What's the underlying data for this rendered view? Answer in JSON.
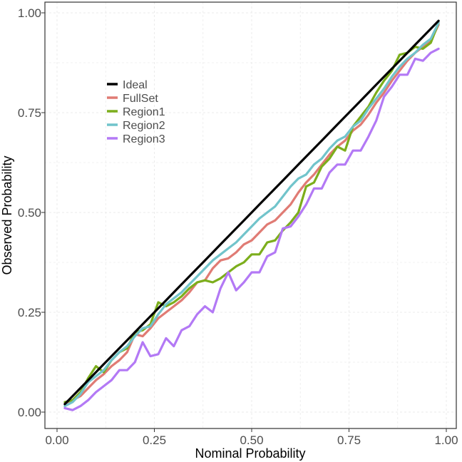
{
  "chart_data": {
    "type": "line",
    "title": "",
    "xlabel": "Nominal Probability",
    "ylabel": "Observed Probability",
    "xlim": [
      0,
      1
    ],
    "ylim": [
      0,
      1
    ],
    "x_ticks": [
      "0.00",
      "0.25",
      "0.50",
      "0.75",
      "1.00"
    ],
    "y_ticks": [
      "0.00",
      "0.25",
      "0.50",
      "0.75",
      "1.00"
    ],
    "grid": true,
    "legend_position": "top-left, inside plot",
    "x": [
      0.02,
      0.04,
      0.06,
      0.08,
      0.1,
      0.12,
      0.14,
      0.16,
      0.18,
      0.2,
      0.22,
      0.24,
      0.26,
      0.28,
      0.3,
      0.32,
      0.34,
      0.36,
      0.38,
      0.4,
      0.42,
      0.44,
      0.46,
      0.48,
      0.5,
      0.52,
      0.54,
      0.56,
      0.58,
      0.6,
      0.62,
      0.64,
      0.66,
      0.68,
      0.7,
      0.72,
      0.74,
      0.76,
      0.78,
      0.8,
      0.82,
      0.84,
      0.86,
      0.88,
      0.9,
      0.92,
      0.94,
      0.96,
      0.98
    ],
    "series": [
      {
        "name": "Ideal",
        "color": "#000000",
        "values": [
          0.02,
          0.04,
          0.06,
          0.08,
          0.1,
          0.12,
          0.14,
          0.16,
          0.18,
          0.2,
          0.22,
          0.24,
          0.26,
          0.28,
          0.3,
          0.32,
          0.34,
          0.36,
          0.38,
          0.4,
          0.42,
          0.44,
          0.46,
          0.48,
          0.5,
          0.52,
          0.54,
          0.56,
          0.58,
          0.6,
          0.62,
          0.64,
          0.66,
          0.68,
          0.7,
          0.72,
          0.74,
          0.76,
          0.78,
          0.8,
          0.82,
          0.84,
          0.86,
          0.88,
          0.9,
          0.92,
          0.94,
          0.96,
          0.98
        ]
      },
      {
        "name": "FullSet",
        "color": "#E07B74",
        "values": [
          0.02,
          0.03,
          0.04,
          0.06,
          0.08,
          0.095,
          0.115,
          0.13,
          0.15,
          0.195,
          0.19,
          0.21,
          0.235,
          0.25,
          0.265,
          0.28,
          0.3,
          0.325,
          0.33,
          0.36,
          0.38,
          0.385,
          0.4,
          0.42,
          0.43,
          0.45,
          0.47,
          0.48,
          0.5,
          0.52,
          0.55,
          0.575,
          0.595,
          0.62,
          0.645,
          0.665,
          0.68,
          0.705,
          0.72,
          0.745,
          0.775,
          0.8,
          0.83,
          0.855,
          0.88,
          0.9,
          0.915,
          0.93,
          0.97
        ]
      },
      {
        "name": "Region1",
        "color": "#7CAE1C",
        "values": [
          0.025,
          0.03,
          0.05,
          0.085,
          0.115,
          0.1,
          0.13,
          0.15,
          0.16,
          0.2,
          0.205,
          0.22,
          0.275,
          0.265,
          0.275,
          0.29,
          0.31,
          0.325,
          0.33,
          0.325,
          0.335,
          0.35,
          0.365,
          0.375,
          0.395,
          0.395,
          0.425,
          0.43,
          0.455,
          0.475,
          0.5,
          0.565,
          0.575,
          0.615,
          0.635,
          0.665,
          0.655,
          0.715,
          0.74,
          0.765,
          0.8,
          0.83,
          0.855,
          0.895,
          0.9,
          0.915,
          0.91,
          0.925,
          0.975
        ]
      },
      {
        "name": "Region2",
        "color": "#71C4CB",
        "values": [
          0.015,
          0.025,
          0.045,
          0.075,
          0.09,
          0.105,
          0.13,
          0.15,
          0.165,
          0.19,
          0.21,
          0.215,
          0.245,
          0.27,
          0.285,
          0.3,
          0.32,
          0.34,
          0.36,
          0.38,
          0.395,
          0.41,
          0.425,
          0.445,
          0.465,
          0.485,
          0.5,
          0.515,
          0.54,
          0.565,
          0.585,
          0.595,
          0.62,
          0.635,
          0.66,
          0.68,
          0.69,
          0.715,
          0.73,
          0.76,
          0.785,
          0.81,
          0.84,
          0.865,
          0.885,
          0.9,
          0.92,
          0.935,
          0.975
        ]
      },
      {
        "name": "Region3",
        "color": "#B379F5",
        "values": [
          0.01,
          0.005,
          0.015,
          0.03,
          0.05,
          0.065,
          0.08,
          0.105,
          0.105,
          0.125,
          0.175,
          0.14,
          0.145,
          0.185,
          0.165,
          0.205,
          0.215,
          0.245,
          0.265,
          0.25,
          0.31,
          0.35,
          0.305,
          0.325,
          0.35,
          0.35,
          0.39,
          0.4,
          0.46,
          0.465,
          0.49,
          0.52,
          0.56,
          0.56,
          0.6,
          0.62,
          0.62,
          0.655,
          0.655,
          0.69,
          0.73,
          0.79,
          0.815,
          0.845,
          0.845,
          0.885,
          0.88,
          0.9,
          0.91
        ]
      }
    ]
  }
}
